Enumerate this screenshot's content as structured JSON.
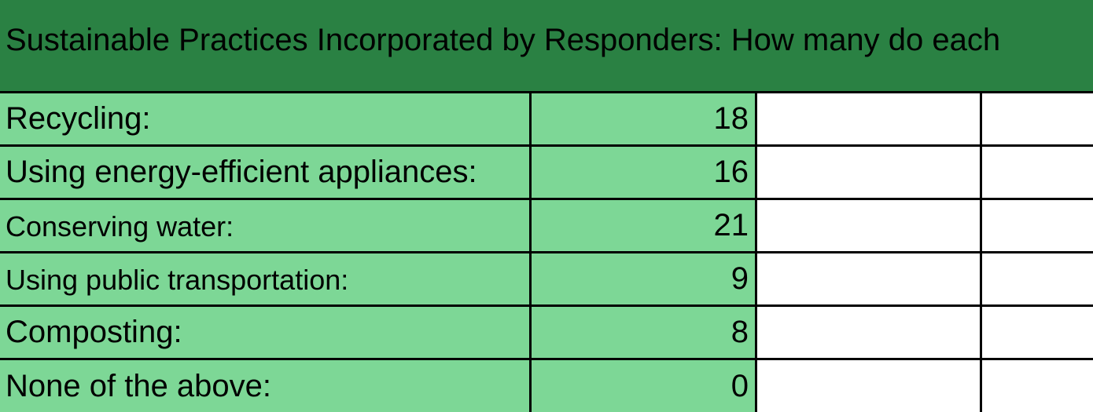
{
  "title": "Sustainable Practices Incorporated by Responders: How many do each",
  "colors": {
    "header_background": "#2a8143",
    "row_background": "#7dd796",
    "grid_lines": "#000000"
  },
  "rows": [
    {
      "label": "Recycling:",
      "count": "18"
    },
    {
      "label": "Using energy-efficient appliances:",
      "count": "16"
    },
    {
      "label": "Conserving water:",
      "count": "21"
    },
    {
      "label": "Using public transportation:",
      "count": "9"
    },
    {
      "label": "Composting:",
      "count": "8"
    },
    {
      "label": "None of the above:",
      "count": "0"
    }
  ]
}
